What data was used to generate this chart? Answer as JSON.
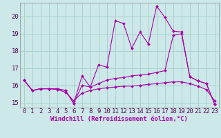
{
  "xlabel": "Windchill (Refroidissement éolien,°C)",
  "ylabel": "",
  "bg_color": "#cce8e8",
  "grid_color": "#aad0d0",
  "line_color": "#aa00aa",
  "xlim": [
    -0.5,
    23.5
  ],
  "ylim": [
    14.7,
    20.8
  ],
  "xticks": [
    0,
    1,
    2,
    3,
    4,
    5,
    6,
    7,
    8,
    9,
    10,
    11,
    12,
    13,
    14,
    15,
    16,
    17,
    18,
    19,
    20,
    21,
    22,
    23
  ],
  "yticks": [
    15,
    16,
    17,
    18,
    19,
    20
  ],
  "line1_x": [
    0,
    1,
    2,
    3,
    4,
    5,
    6,
    7,
    8,
    9,
    10,
    11,
    12,
    13,
    14,
    15,
    16,
    17,
    18,
    19,
    20,
    21,
    22,
    23
  ],
  "line1_y": [
    16.3,
    15.7,
    15.8,
    15.8,
    15.8,
    15.7,
    14.95,
    16.55,
    15.9,
    17.2,
    17.05,
    19.75,
    19.6,
    18.15,
    19.1,
    18.4,
    20.6,
    19.95,
    19.15,
    19.1,
    16.5,
    16.25,
    16.1,
    14.9
  ],
  "line2_x": [
    0,
    1,
    2,
    3,
    4,
    5,
    6,
    7,
    8,
    9,
    10,
    11,
    12,
    13,
    14,
    15,
    16,
    17,
    18,
    19,
    20,
    21,
    22,
    23
  ],
  "line2_y": [
    16.3,
    15.7,
    15.8,
    15.8,
    15.8,
    15.7,
    14.95,
    16.0,
    15.9,
    16.1,
    16.3,
    16.4,
    16.45,
    16.55,
    16.6,
    16.65,
    16.75,
    16.85,
    18.9,
    19.0,
    16.5,
    16.25,
    16.1,
    14.9
  ],
  "line3_x": [
    0,
    1,
    2,
    3,
    4,
    5,
    6,
    7,
    8,
    9,
    10,
    11,
    12,
    13,
    14,
    15,
    16,
    17,
    18,
    19,
    20,
    21,
    22,
    23
  ],
  "line3_y": [
    16.3,
    15.7,
    15.8,
    15.8,
    15.75,
    15.6,
    15.1,
    15.55,
    15.7,
    15.8,
    15.85,
    15.9,
    15.95,
    15.95,
    16.0,
    16.05,
    16.1,
    16.15,
    16.2,
    16.2,
    16.1,
    15.95,
    15.75,
    15.1
  ],
  "xlabel_fontsize": 6.5,
  "tick_fontsize": 6.5,
  "xlabel_color": "#aa00aa"
}
